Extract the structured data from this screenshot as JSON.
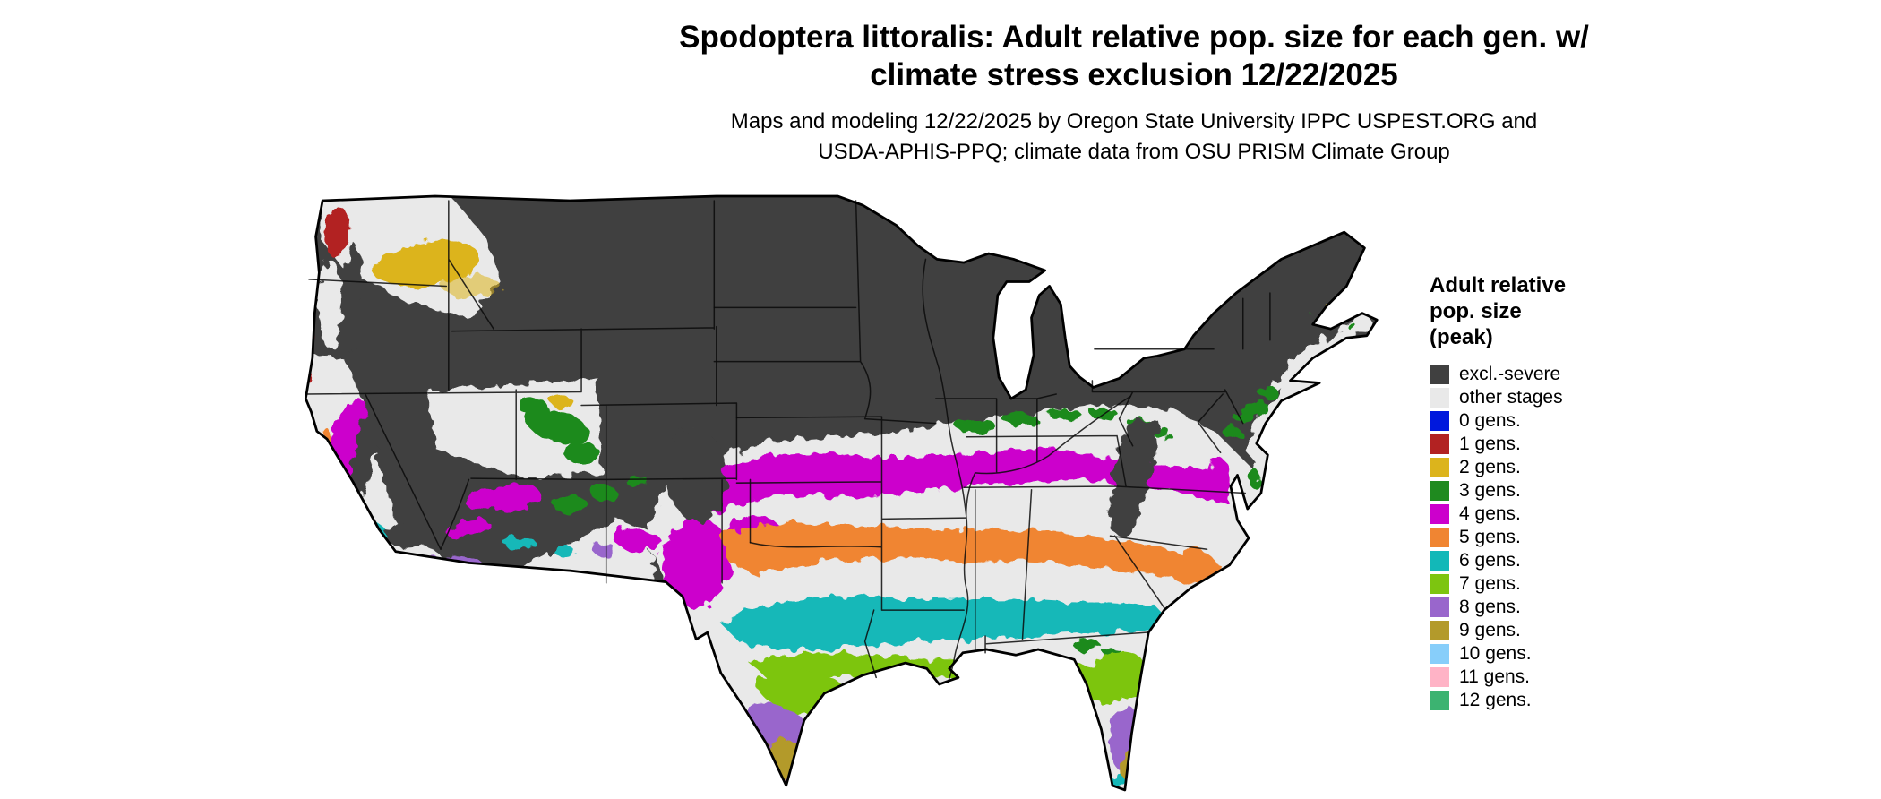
{
  "header": {
    "title_line1": "Spodoptera littoralis: Adult relative pop. size for each gen. w/",
    "title_line2": "climate stress exclusion 12/22/2025",
    "subtitle_line1": "Maps and modeling 12/22/2025 by Oregon State University IPPC USPEST.ORG and",
    "subtitle_line2": "USDA-APHIS-PPQ; climate data from OSU PRISM Climate Group"
  },
  "legend": {
    "title_lines": [
      "Adult relative",
      "pop. size",
      "(peak)"
    ],
    "items": [
      {
        "label": "excl.-severe",
        "color": "#404040"
      },
      {
        "label": "other stages",
        "color": "#e9e9e9"
      },
      {
        "label": "0 gens.",
        "color": "#0018dd"
      },
      {
        "label": "1 gens.",
        "color": "#b22222"
      },
      {
        "label": "2 gens.",
        "color": "#dcb41c"
      },
      {
        "label": "3 gens.",
        "color": "#1f8a1f"
      },
      {
        "label": "4 gens.",
        "color": "#cc00cc"
      },
      {
        "label": "5 gens.",
        "color": "#f08532"
      },
      {
        "label": "6 gens.",
        "color": "#12b8b8"
      },
      {
        "label": "7 gens.",
        "color": "#7dc510"
      },
      {
        "label": "8 gens.",
        "color": "#9966cc"
      },
      {
        "label": "9 gens.",
        "color": "#b39a2b"
      },
      {
        "label": "10 gens.",
        "color": "#87cefa"
      },
      {
        "label": "11 gens.",
        "color": "#ffb3c6"
      },
      {
        "label": "12 gens.",
        "color": "#3cb371"
      }
    ]
  }
}
